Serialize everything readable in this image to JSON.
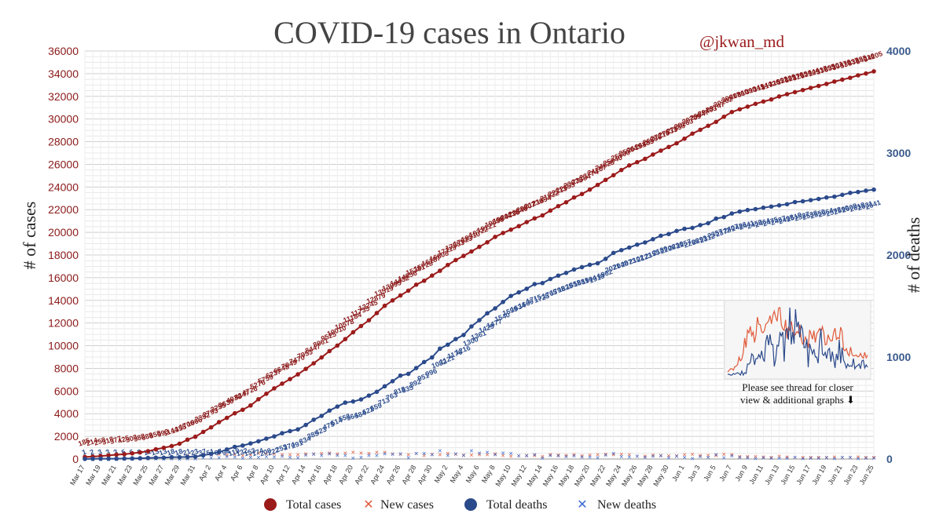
{
  "title": "COVID-19 cases in Ontario",
  "handle": "@jkwan_md",
  "ylabel_left": "# of cases",
  "ylabel_right": "# of deaths",
  "note": {
    "line1": "Please see thread for closer",
    "line2": "view & additional graphs ⬇"
  },
  "colors": {
    "cases": "#9b1b1b",
    "deaths": "#2b4a8b",
    "new_cases": "#e05a3a",
    "new_deaths": "#3a6ad0",
    "grid": "#dddddd"
  },
  "chart_data": {
    "type": "line",
    "x_ticks": [
      "Mar 17",
      "Mar 19",
      "Mar 21",
      "Mar 23",
      "Mar 25",
      "Mar 27",
      "Mar 29",
      "Mar 31",
      "Apr 2",
      "Apr 4",
      "Apr 6",
      "Apr 8",
      "Apr 10",
      "Apr 12",
      "Apr 14",
      "Apr 16",
      "Apr 18",
      "Apr 20",
      "Apr 22",
      "Apr 24",
      "Apr 26",
      "Apr 28",
      "Apr 30",
      "May 2",
      "May 4",
      "May 6",
      "May 8",
      "May 10",
      "May 12",
      "May 14",
      "May 16",
      "May 18",
      "May 20",
      "May 22",
      "May 24",
      "May 26",
      "May 28",
      "May 30",
      "Jun 1",
      "Jun 3",
      "Jun 5",
      "Jun 7",
      "Jun 9",
      "Jun 11",
      "Jun 13",
      "Jun 15",
      "Jun 17",
      "Jun 19",
      "Jun 21",
      "Jun 23",
      "Jun 25"
    ],
    "y_left": {
      "min": 0,
      "max": 36000,
      "step": 2000,
      "label": "# of cases"
    },
    "y_right": {
      "min": 0,
      "max": 4000,
      "step": 1000,
      "label": "# of deaths"
    },
    "legend": [
      "Total cases",
      "New cases",
      "Total deaths",
      "New deaths"
    ],
    "legend_position": "bottom",
    "grid": true,
    "series": [
      {
        "name": "Total cases",
        "axis": "left",
        "values": [
          185,
          214,
          258,
          318,
          377,
          425,
          503,
          588,
          688,
          858,
          993,
          1144,
          1355,
          1706,
          1966,
          2392,
          2793,
          3255,
          3630,
          4038,
          4347,
          4726,
          5276,
          5759,
          6237,
          6648,
          7049,
          7470,
          7953,
          8447,
          8961,
          9525,
          10010,
          10578,
          11184,
          11735,
          12245,
          12879,
          13519,
          13995,
          14432,
          14856,
          15381,
          15728,
          16187,
          16608,
          17119,
          17553,
          17923,
          18310,
          18722,
          19121,
          19598,
          19944,
          20238,
          20546,
          20907,
          21236,
          21494,
          21922,
          22313,
          22653,
          23075,
          23384,
          23774,
          24187,
          24628,
          25040,
          25500,
          25904,
          26191,
          26483,
          26866,
          27210,
          27533,
          27859,
          28263,
          28709,
          29047,
          29403,
          29747,
          30202,
          30617,
          30860,
          31090,
          31341,
          31544,
          31726,
          31992,
          32189,
          32370,
          32554,
          32744,
          32917,
          33095,
          33301,
          33476,
          33637,
          33853,
          34016,
          34205
        ]
      },
      {
        "name": "Total deaths",
        "axis": "right",
        "values": [
          1,
          2,
          3,
          3,
          3,
          5,
          6,
          8,
          11,
          13,
          13,
          18,
          18,
          21,
          23,
          37,
          51,
          67,
          94,
          119,
          132,
          153,
          174,
          200,
          222,
          253,
          274,
          291,
          334,
          385,
          423,
          475,
          514,
          553,
          564,
          584,
          622,
          659,
          713,
          763,
          818,
          835,
          892,
          951,
          996,
          1082,
          1121,
          1176,
          1216,
          1300,
          1361,
          1429,
          1477,
          1540,
          1599,
          1634,
          1669,
          1715,
          1725,
          1765,
          1798,
          1825,
          1858,
          1881,
          1904,
          1919,
          1962,
          2021,
          2048,
          2073,
          2102,
          2123,
          2155,
          2189,
          2206,
          2236,
          2257,
          2266,
          2293,
          2312,
          2357,
          2372,
          2407,
          2426,
          2441,
          2450,
          2464,
          2475,
          2487,
          2498,
          2519,
          2527,
          2538,
          2550,
          2564,
          2572,
          2590,
          2609,
          2618,
          2631,
          2641
        ]
      }
    ],
    "data_labels": {
      "total_cases": [
        "185",
        "214",
        "258",
        "318",
        "377",
        "425",
        "503",
        "588",
        "688",
        "858",
        "993",
        "1144",
        "1355",
        "1706",
        "1966",
        "2392",
        "2793",
        "3255",
        "3630",
        "4038",
        "4347",
        "4726",
        "5276",
        "5759",
        "6237",
        "6648",
        "7049",
        "7470",
        "7953",
        "8447",
        "8961",
        "9525",
        "10010",
        "10578",
        "11184",
        "11735",
        "12245",
        "12879",
        "13519",
        "13995",
        "14432",
        "14856",
        "15381",
        "15728",
        "16187",
        "16608",
        "17119",
        "17553",
        "17923",
        "18310",
        "18722",
        "19121",
        "19598",
        "19944",
        "20238",
        "20546",
        "20907",
        "21236",
        "21494",
        "21922",
        "22313",
        "22653",
        "23075",
        "23384",
        "23774",
        "24187",
        "24628",
        "25040",
        "25500",
        "25904",
        "26191",
        "26483",
        "26866",
        "27210",
        "27533",
        "27859",
        "28263",
        "28709",
        "29047",
        "29403",
        "29747",
        "30202",
        "30617",
        "30860",
        "31090",
        "31341",
        "31544",
        "31726",
        "31992",
        "32189",
        "32370",
        "32554",
        "32744",
        "32917",
        "33095",
        "33301",
        "33476",
        "33637",
        "33853",
        "34016",
        "34205"
      ],
      "total_deaths": [
        "1",
        "2",
        "3",
        "3",
        "3",
        "5",
        "6",
        "8",
        "11",
        "13",
        "13",
        "18",
        "18",
        "21",
        "23",
        "37",
        "51",
        "67",
        "94",
        "119",
        "132",
        "153",
        "174",
        "200",
        "222",
        "253",
        "274",
        "291",
        "334",
        "385",
        "423",
        "475",
        "514",
        "553",
        "564",
        "584",
        "622",
        "659",
        "713",
        "763",
        "818",
        "835",
        "892",
        "951",
        "996",
        "1082",
        "1121",
        "1176",
        "1216",
        "1300",
        "1361",
        "1429",
        "1477",
        "1540",
        "1599",
        "1634",
        "1669",
        "1715",
        "1725",
        "1765",
        "1798",
        "1825",
        "1858",
        "1881",
        "1904",
        "1919",
        "1962",
        "2021",
        "2048",
        "2073",
        "2102",
        "2123",
        "2155",
        "2189",
        "2206",
        "2236",
        "2257",
        "2266",
        "2293",
        "2312",
        "2357",
        "2372",
        "2407",
        "2426",
        "2441",
        "2450",
        "2464",
        "2475",
        "2487",
        "2498",
        "2519",
        "2527",
        "2538",
        "2550",
        "2564",
        "2572",
        "2590",
        "2609",
        "2618",
        "2631",
        "2641"
      ]
    }
  }
}
